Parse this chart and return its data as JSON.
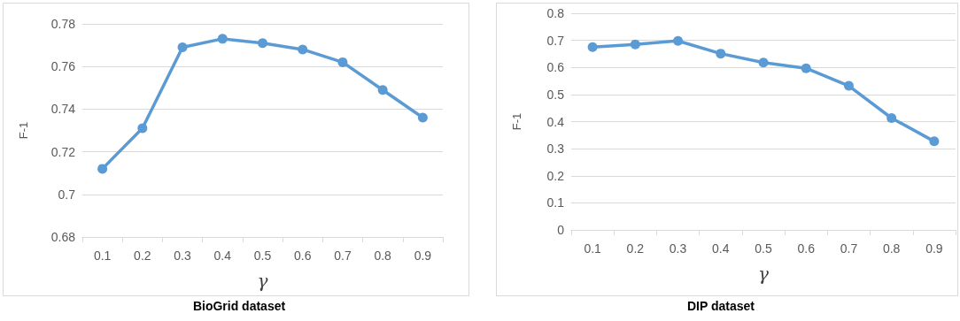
{
  "chart_data": [
    {
      "type": "line",
      "title": "BioGrid dataset",
      "xlabel": "γ",
      "ylabel": "F-1",
      "categories": [
        "0.1",
        "0.2",
        "0.3",
        "0.4",
        "0.5",
        "0.6",
        "0.7",
        "0.8",
        "0.9"
      ],
      "series": [
        {
          "color": "#5b9bd5",
          "values": [
            0.712,
            0.731,
            0.769,
            0.773,
            0.771,
            0.768,
            0.762,
            0.749,
            0.736
          ]
        }
      ],
      "ylim": [
        0.68,
        0.78
      ],
      "yticks": [
        0.68,
        {
          "value": 0.7,
          "label": "0.7"
        },
        0.72,
        0.74,
        0.76,
        0.78
      ],
      "grid": "y",
      "marker": "circle",
      "line_style": "solid"
    },
    {
      "type": "line",
      "title": "DIP dataset",
      "xlabel": "γ",
      "ylabel": "F-1",
      "categories": [
        "0.1",
        "0.2",
        "0.3",
        "0.4",
        "0.5",
        "0.6",
        "0.7",
        "0.8",
        "0.9"
      ],
      "series": [
        {
          "color": "#5b9bd5",
          "values": [
            0.675,
            0.685,
            0.698,
            0.651,
            0.618,
            0.597,
            0.532,
            0.413,
            0.327
          ]
        }
      ],
      "ylim": [
        0,
        0.8
      ],
      "yticks": [
        0,
        0.1,
        0.2,
        0.3,
        0.4,
        0.5,
        0.6,
        0.7,
        0.8
      ],
      "grid": "y",
      "marker": "circle",
      "line_style": "solid"
    }
  ]
}
